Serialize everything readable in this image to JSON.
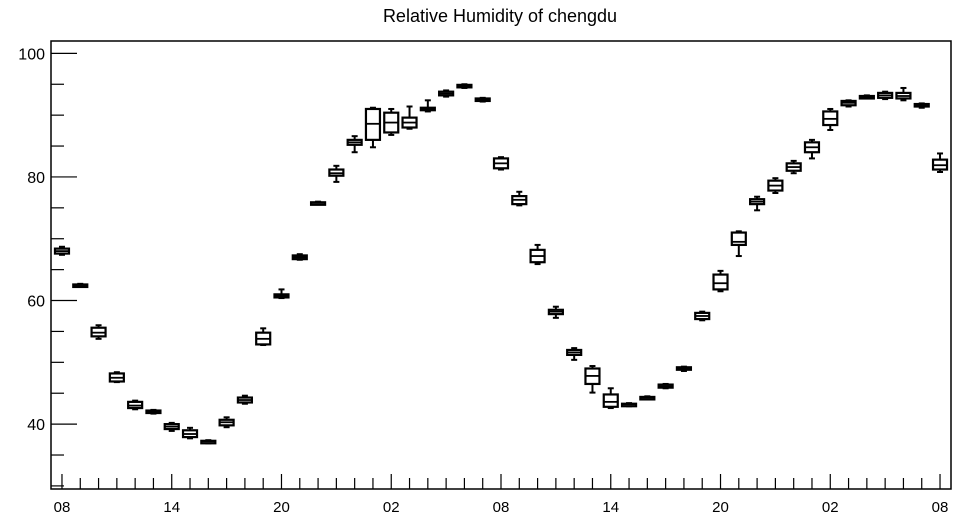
{
  "chart_data": {
    "type": "box",
    "title": "Relative Humidity of chengdu",
    "xlabel": "",
    "ylabel": "",
    "ylim": [
      29.5,
      102
    ],
    "y_ticks": [
      40,
      60,
      80,
      100
    ],
    "x_tick_labels": [
      "08",
      "14",
      "20",
      "02",
      "08",
      "14",
      "20",
      "02",
      "08"
    ],
    "x_tick_label_hours": [
      0,
      6,
      12,
      18,
      24,
      30,
      36,
      42,
      48
    ],
    "x_minor_tick_hours": [
      0,
      1,
      2,
      3,
      4,
      5,
      6,
      7,
      8,
      9,
      10,
      11,
      12,
      13,
      14,
      15,
      16,
      17,
      18,
      19,
      20,
      21,
      22,
      23,
      24,
      25,
      26,
      27,
      28,
      29,
      30,
      31,
      32,
      33,
      34,
      35,
      36,
      37,
      38,
      39,
      40,
      41,
      42,
      43,
      44,
      45,
      46,
      47,
      48
    ],
    "xlim": [
      -0.6,
      48.6
    ],
    "grid": false,
    "boxes": [
      {
        "hour": 0,
        "whisker_low": 67.4,
        "q1": 67.6,
        "median": 68.0,
        "q3": 68.4,
        "whisker_high": 68.7
      },
      {
        "hour": 1,
        "whisker_low": 62.2,
        "q1": 62.3,
        "median": 62.5,
        "q3": 62.6,
        "whisker_high": 62.7
      },
      {
        "hour": 2,
        "whisker_low": 53.8,
        "q1": 54.2,
        "median": 54.8,
        "q3": 55.6,
        "whisker_high": 56.0
      },
      {
        "hour": 3,
        "whisker_low": 46.8,
        "q1": 46.9,
        "median": 47.5,
        "q3": 48.2,
        "whisker_high": 48.4
      },
      {
        "hour": 4,
        "whisker_low": 42.4,
        "q1": 42.6,
        "median": 43.0,
        "q3": 43.6,
        "whisker_high": 43.8
      },
      {
        "hour": 5,
        "whisker_low": 41.7,
        "q1": 41.8,
        "median": 42.0,
        "q3": 42.2,
        "whisker_high": 42.3
      },
      {
        "hour": 6,
        "whisker_low": 38.9,
        "q1": 39.2,
        "median": 39.6,
        "q3": 40.0,
        "whisker_high": 40.2
      },
      {
        "hour": 7,
        "whisker_low": 37.7,
        "q1": 37.9,
        "median": 38.4,
        "q3": 39.0,
        "whisker_high": 39.4
      },
      {
        "hour": 8,
        "whisker_low": 36.9,
        "q1": 37.0,
        "median": 37.2,
        "q3": 37.3,
        "whisker_high": 37.4
      },
      {
        "hour": 9,
        "whisker_low": 39.5,
        "q1": 39.8,
        "median": 40.3,
        "q3": 40.7,
        "whisker_high": 41.1
      },
      {
        "hour": 10,
        "whisker_low": 43.3,
        "q1": 43.5,
        "median": 43.9,
        "q3": 44.3,
        "whisker_high": 44.6
      },
      {
        "hour": 11,
        "whisker_low": 52.8,
        "q1": 52.9,
        "median": 53.8,
        "q3": 54.8,
        "whisker_high": 55.5
      },
      {
        "hour": 12,
        "whisker_low": 60.4,
        "q1": 60.5,
        "median": 60.8,
        "q3": 61.0,
        "whisker_high": 61.8
      },
      {
        "hour": 13,
        "whisker_low": 66.6,
        "q1": 66.7,
        "median": 67.0,
        "q3": 67.3,
        "whisker_high": 67.5
      },
      {
        "hour": 14,
        "whisker_low": 75.6,
        "q1": 75.7,
        "median": 75.8,
        "q3": 75.9,
        "whisker_high": 76.0
      },
      {
        "hour": 15,
        "whisker_low": 79.2,
        "q1": 80.2,
        "median": 80.6,
        "q3": 81.2,
        "whisker_high": 81.8
      },
      {
        "hour": 16,
        "whisker_low": 84.0,
        "q1": 85.2,
        "median": 85.6,
        "q3": 86.0,
        "whisker_high": 86.6
      },
      {
        "hour": 17,
        "whisker_low": 84.8,
        "q1": 86.0,
        "median": 88.6,
        "q3": 91.0,
        "whisker_high": 91.2
      },
      {
        "hour": 18,
        "whisker_low": 86.8,
        "q1": 87.2,
        "median": 88.8,
        "q3": 90.4,
        "whisker_high": 91.0
      },
      {
        "hour": 19,
        "whisker_low": 87.8,
        "q1": 88.0,
        "median": 88.8,
        "q3": 89.6,
        "whisker_high": 91.4
      },
      {
        "hour": 20,
        "whisker_low": 90.6,
        "q1": 90.8,
        "median": 91.0,
        "q3": 91.2,
        "whisker_high": 92.4
      },
      {
        "hour": 21,
        "whisker_low": 93.0,
        "q1": 93.2,
        "median": 93.5,
        "q3": 93.8,
        "whisker_high": 94.0
      },
      {
        "hour": 22,
        "whisker_low": 94.4,
        "q1": 94.5,
        "median": 94.7,
        "q3": 94.9,
        "whisker_high": 95.0
      },
      {
        "hour": 23,
        "whisker_low": 92.2,
        "q1": 92.3,
        "median": 92.5,
        "q3": 92.7,
        "whisker_high": 92.8
      },
      {
        "hour": 24,
        "whisker_low": 81.2,
        "q1": 81.4,
        "median": 82.2,
        "q3": 83.0,
        "whisker_high": 83.2
      },
      {
        "hour": 25,
        "whisker_low": 75.4,
        "q1": 75.6,
        "median": 76.3,
        "q3": 76.9,
        "whisker_high": 77.6
      },
      {
        "hour": 26,
        "whisker_low": 65.9,
        "q1": 66.2,
        "median": 67.2,
        "q3": 68.2,
        "whisker_high": 69.0
      },
      {
        "hour": 27,
        "whisker_low": 57.2,
        "q1": 57.8,
        "median": 58.2,
        "q3": 58.5,
        "whisker_high": 59.0
      },
      {
        "hour": 28,
        "whisker_low": 50.4,
        "q1": 51.2,
        "median": 51.6,
        "q3": 52.0,
        "whisker_high": 52.3
      },
      {
        "hour": 29,
        "whisker_low": 45.1,
        "q1": 46.5,
        "median": 47.8,
        "q3": 49.0,
        "whisker_high": 49.4
      },
      {
        "hour": 30,
        "whisker_low": 42.6,
        "q1": 42.8,
        "median": 43.6,
        "q3": 44.8,
        "whisker_high": 45.8
      },
      {
        "hour": 31,
        "whisker_low": 42.9,
        "q1": 43.0,
        "median": 43.2,
        "q3": 43.3,
        "whisker_high": 43.4
      },
      {
        "hour": 32,
        "whisker_low": 44.1,
        "q1": 44.2,
        "median": 44.3,
        "q3": 44.4,
        "whisker_high": 44.5
      },
      {
        "hour": 33,
        "whisker_low": 45.8,
        "q1": 45.9,
        "median": 46.1,
        "q3": 46.4,
        "whisker_high": 46.5
      },
      {
        "hour": 34,
        "whisker_low": 48.6,
        "q1": 48.8,
        "median": 49.0,
        "q3": 49.2,
        "whisker_high": 49.3
      },
      {
        "hour": 35,
        "whisker_low": 56.8,
        "q1": 57.0,
        "median": 57.5,
        "q3": 58.0,
        "whisker_high": 58.2
      },
      {
        "hour": 36,
        "whisker_low": 61.5,
        "q1": 61.8,
        "median": 62.8,
        "q3": 64.2,
        "whisker_high": 64.8
      },
      {
        "hour": 37,
        "whisker_low": 67.2,
        "q1": 69.0,
        "median": 69.5,
        "q3": 71.0,
        "whisker_high": 71.2
      },
      {
        "hour": 38,
        "whisker_low": 74.6,
        "q1": 75.6,
        "median": 76.0,
        "q3": 76.4,
        "whisker_high": 76.8
      },
      {
        "hour": 39,
        "whisker_low": 77.4,
        "q1": 77.8,
        "median": 78.6,
        "q3": 79.4,
        "whisker_high": 79.8
      },
      {
        "hour": 40,
        "whisker_low": 80.6,
        "q1": 81.0,
        "median": 81.6,
        "q3": 82.2,
        "whisker_high": 82.6
      },
      {
        "hour": 41,
        "whisker_low": 83.0,
        "q1": 84.0,
        "median": 84.8,
        "q3": 85.6,
        "whisker_high": 86.0
      },
      {
        "hour": 42,
        "whisker_low": 87.6,
        "q1": 88.4,
        "median": 89.4,
        "q3": 90.6,
        "whisker_high": 91.0
      },
      {
        "hour": 43,
        "whisker_low": 91.4,
        "q1": 91.6,
        "median": 92.0,
        "q3": 92.3,
        "whisker_high": 92.4
      },
      {
        "hour": 44,
        "whisker_low": 92.8,
        "q1": 92.9,
        "median": 93.0,
        "q3": 93.1,
        "whisker_high": 93.2
      },
      {
        "hour": 45,
        "whisker_low": 92.6,
        "q1": 92.8,
        "median": 93.2,
        "q3": 93.6,
        "whisker_high": 93.8
      },
      {
        "hour": 46,
        "whisker_low": 92.4,
        "q1": 92.7,
        "median": 93.1,
        "q3": 93.6,
        "whisker_high": 94.4
      },
      {
        "hour": 47,
        "whisker_low": 91.2,
        "q1": 91.4,
        "median": 91.6,
        "q3": 91.8,
        "whisker_high": 91.9
      },
      {
        "hour": 48,
        "whisker_low": 80.8,
        "q1": 81.2,
        "median": 81.9,
        "q3": 82.8,
        "whisker_high": 83.8
      }
    ]
  }
}
